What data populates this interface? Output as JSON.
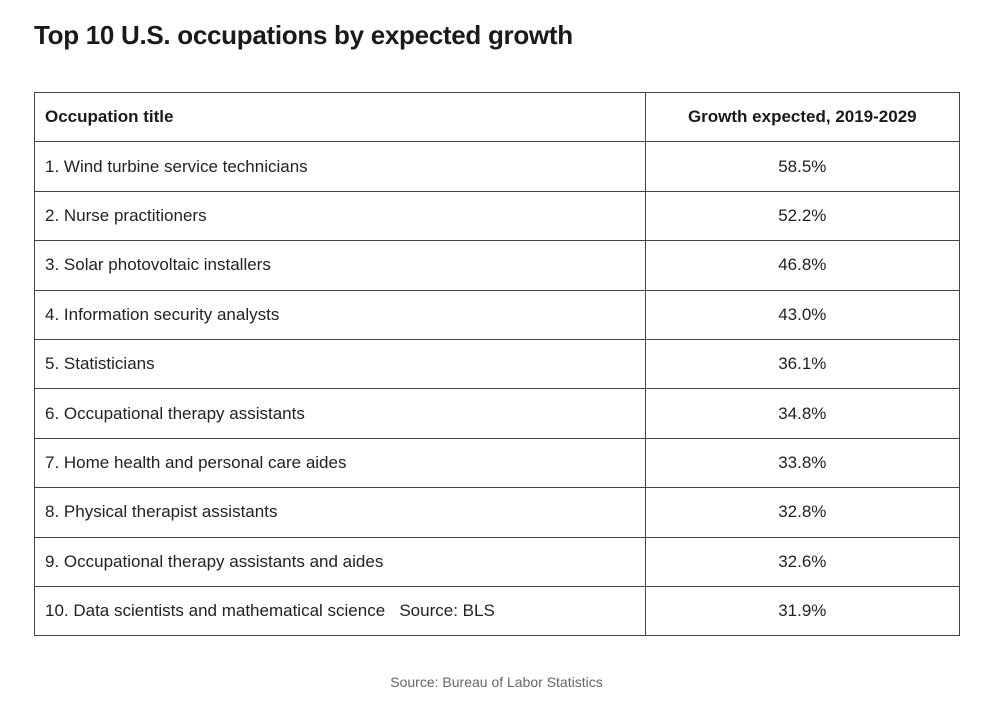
{
  "title": "Top 10 U.S. occupations by expected growth",
  "chart_data": {
    "type": "table",
    "title": "Top 10 U.S. occupations by expected growth",
    "columns": [
      "Occupation title",
      "Growth expected, 2019-2029"
    ],
    "rows": [
      [
        "1. Wind turbine service technicians",
        "58.5%"
      ],
      [
        "2. Nurse practitioners",
        "52.2%"
      ],
      [
        "3. Solar photovoltaic installers",
        "46.8%"
      ],
      [
        "4. Information security analysts",
        "43.0%"
      ],
      [
        "5. Statisticians",
        "36.1%"
      ],
      [
        "6. Occupational therapy assistants",
        "34.8%"
      ],
      [
        "7. Home health and personal care aides",
        "33.8%"
      ],
      [
        "8. Physical therapist assistants",
        "32.8%"
      ],
      [
        "9. Occupational therapy assistants and aides",
        "32.6%"
      ],
      [
        "10. Data scientists and mathematical science   Source: BLS",
        "31.9%"
      ]
    ]
  },
  "source": "Source: Bureau of Labor Statistics"
}
